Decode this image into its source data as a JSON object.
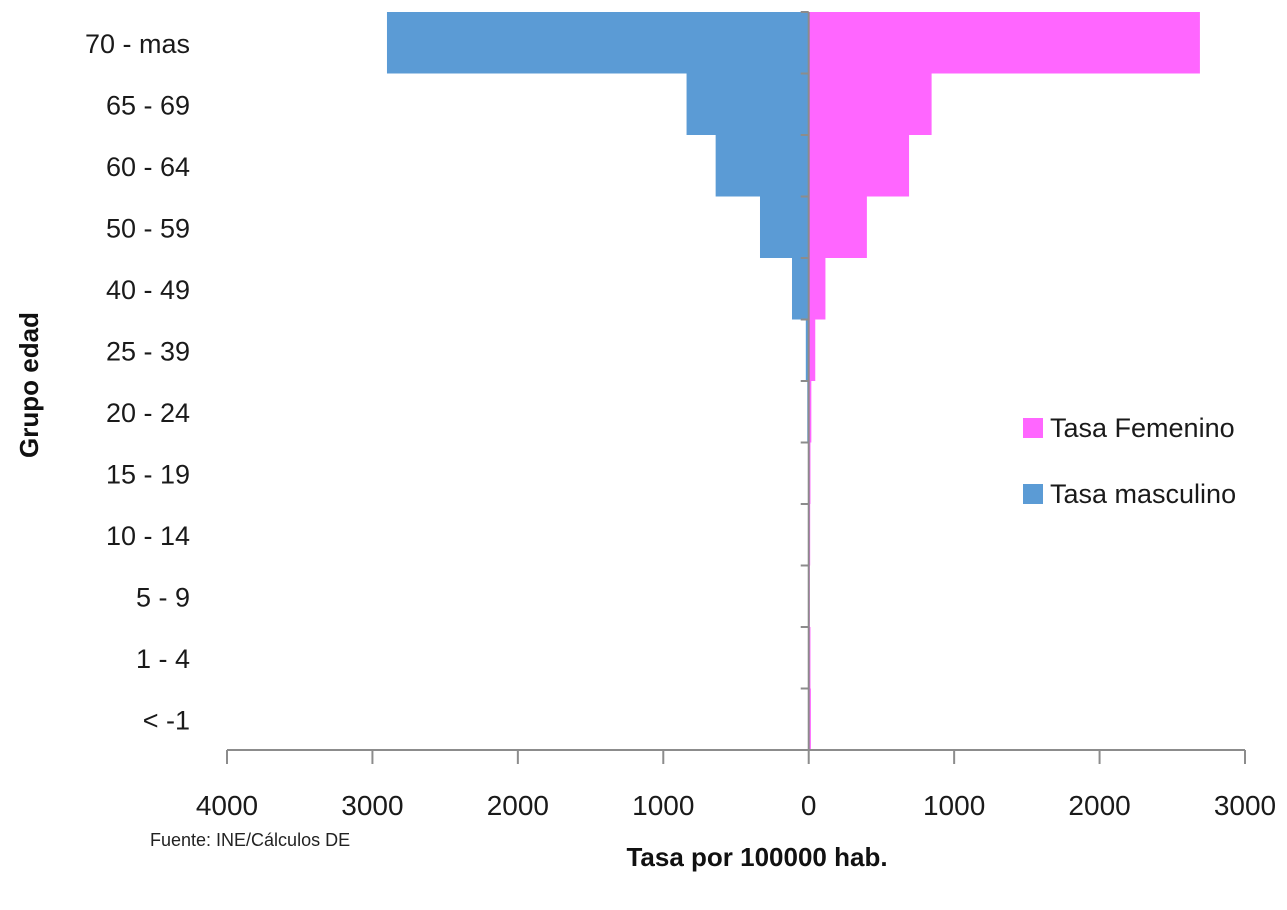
{
  "chart_data": {
    "type": "bar",
    "orientation": "horizontal",
    "layout": "population-pyramid",
    "categories": [
      "< -1",
      "1 - 4",
      "5 - 9",
      "10 - 14",
      "15 - 19",
      "20 - 24",
      "25 - 39",
      "40 - 49",
      "50 - 59",
      "60 - 64",
      "65 - 69",
      "70 - mas"
    ],
    "series": [
      {
        "name": "Tasa Femenino",
        "color": "#ff66ff",
        "side": "right",
        "values": [
          15,
          12,
          8,
          10,
          12,
          18,
          45,
          115,
          400,
          690,
          845,
          2690
        ]
      },
      {
        "name": "Tasa masculino",
        "color": "#5b9bd5",
        "side": "left",
        "values": [
          5,
          3,
          2,
          2,
          5,
          10,
          20,
          115,
          335,
          640,
          840,
          2900
        ]
      }
    ],
    "xlim": [
      -4000,
      3000
    ],
    "xticks": [
      -4000,
      -3000,
      -2000,
      -1000,
      0,
      1000,
      2000,
      3000
    ],
    "xtick_labels": [
      "4000",
      "3000",
      "2000",
      "1000",
      "0",
      "1000",
      "2000",
      "3000"
    ],
    "xlabel": "Tasa por 100000 hab.",
    "ylabel": "Grupo edad",
    "legend_position": "right"
  },
  "source": "Fuente: INE/Cálculos DE"
}
